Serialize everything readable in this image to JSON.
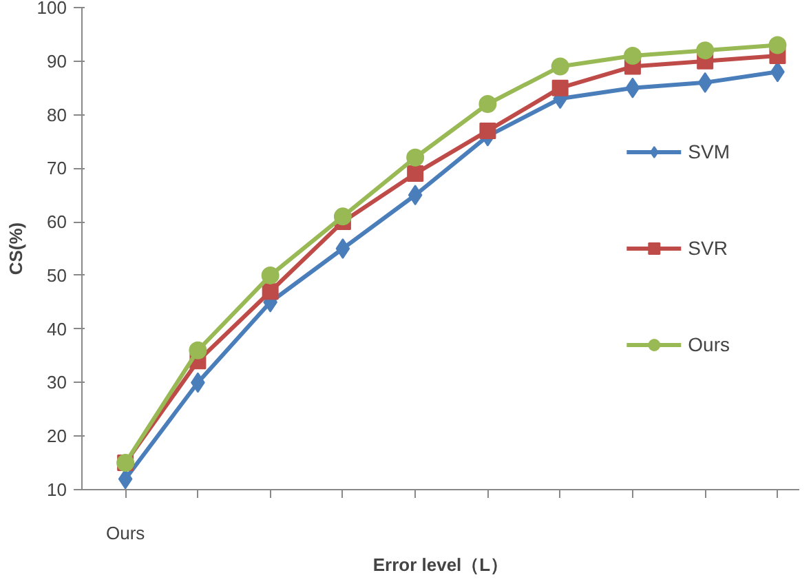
{
  "chart_data": {
    "type": "line",
    "xlabel": "Error level（L）",
    "ylabel": "CS(%)",
    "categories": [
      "Ours",
      null,
      null,
      null,
      null,
      null,
      null,
      null,
      null,
      null
    ],
    "ylim": [
      10,
      100
    ],
    "yticks": [
      10,
      20,
      30,
      40,
      50,
      60,
      70,
      80,
      90,
      100
    ],
    "grid": false,
    "legend": "right",
    "line_style": "solid",
    "series": [
      {
        "name": "SVM",
        "color": "#4a7ebb",
        "marker": "diamond",
        "values": [
          12,
          30,
          45,
          55,
          65,
          76,
          83,
          85,
          86,
          88
        ]
      },
      {
        "name": "SVR",
        "color": "#be4b48",
        "marker": "square",
        "values": [
          15,
          34,
          47,
          60,
          69,
          77,
          85,
          89,
          90,
          91
        ]
      },
      {
        "name": "Ours",
        "color": "#98b954",
        "marker": "circle",
        "values": [
          15,
          36,
          50,
          61,
          72,
          82,
          89,
          91,
          92,
          93
        ]
      }
    ]
  }
}
